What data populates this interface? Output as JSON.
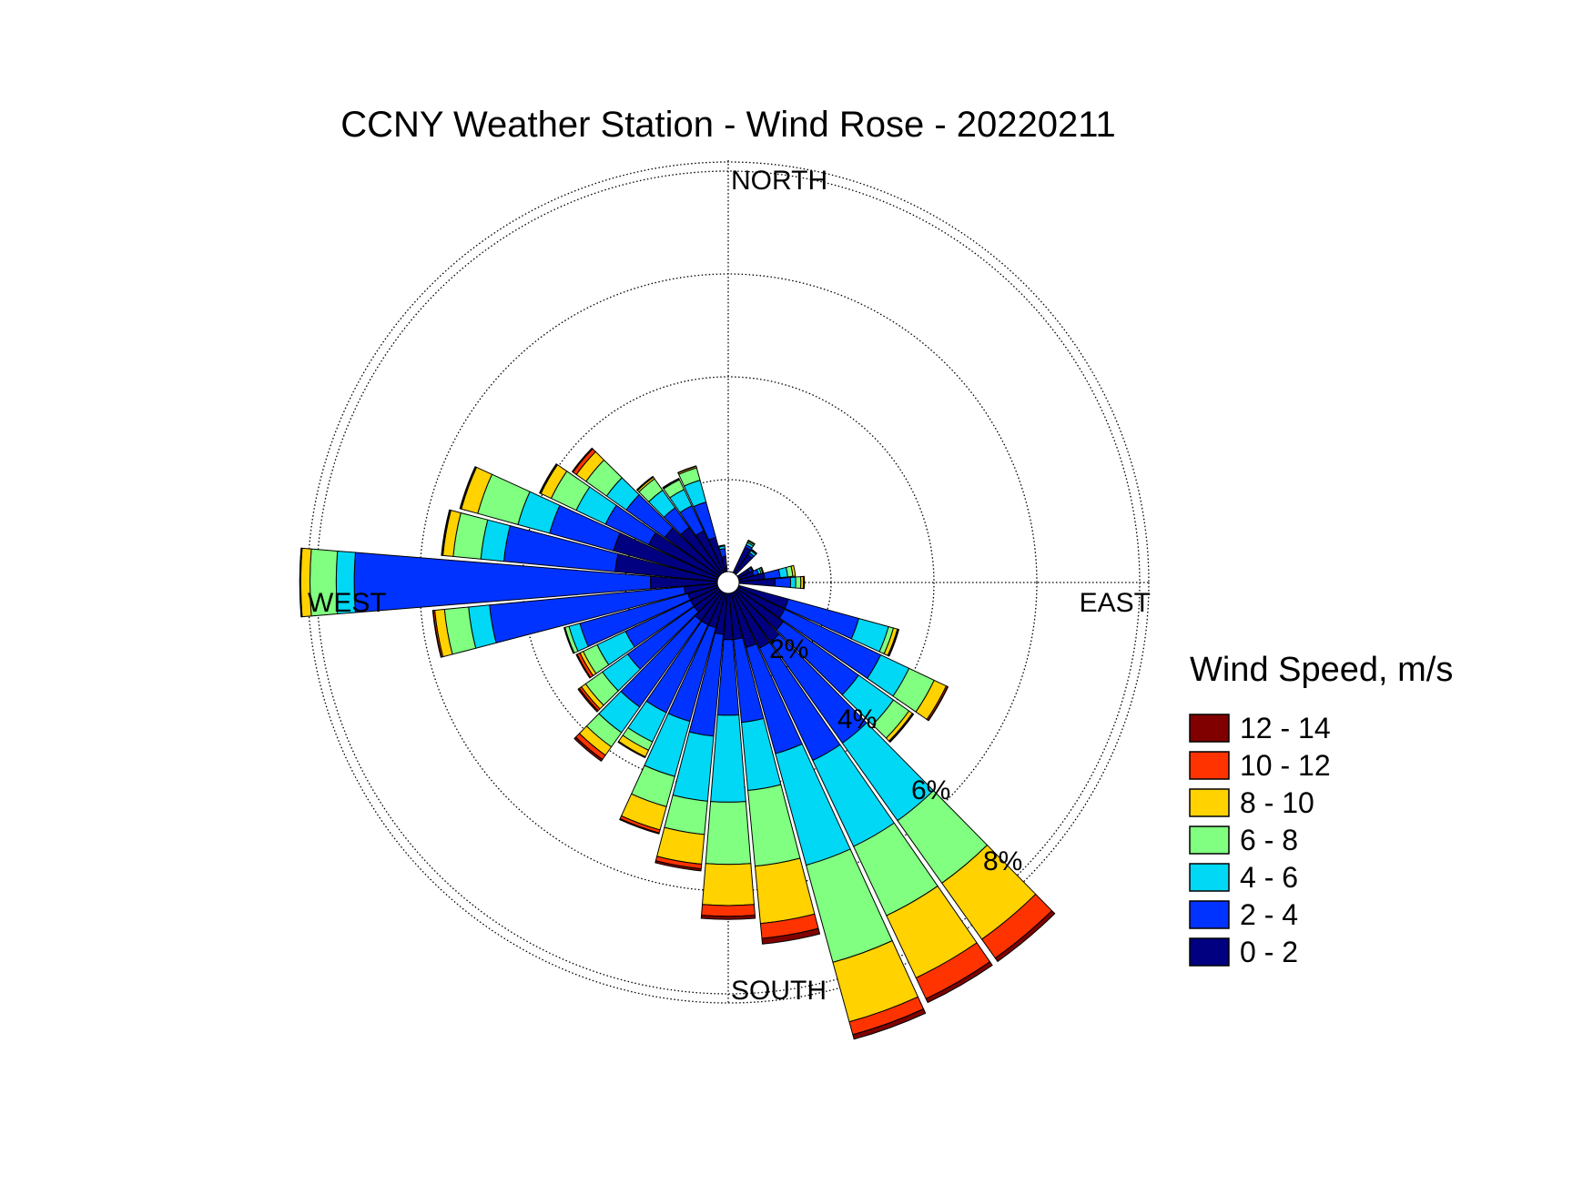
{
  "chart_data": {
    "type": "wind-rose",
    "title": "CCNY Weather Station - Wind Rose - 20220211",
    "direction_labels": {
      "north": "NORTH",
      "east": "EAST",
      "south": "SOUTH",
      "west": "WEST"
    },
    "ring_labels": [
      "2%",
      "4%",
      "6%",
      "8%"
    ],
    "rings_percent": [
      2,
      4,
      6,
      8
    ],
    "legend": {
      "title": "Wind Speed, m/s",
      "bins": [
        {
          "label": "12 - 14",
          "color": "#800000"
        },
        {
          "label": "10 - 12",
          "color": "#ff3300"
        },
        {
          "label": "8 - 10",
          "color": "#ffd200"
        },
        {
          "label": "6 - 8",
          "color": "#80ff80"
        },
        {
          "label": "4 - 6",
          "color": "#00d8f5"
        },
        {
          "label": "2 - 4",
          "color": "#0033ff"
        },
        {
          "label": "0 - 2",
          "color": "#000080"
        }
      ]
    },
    "bin_order_inner_to_outer": [
      "0 - 2",
      "2 - 4",
      "4 - 6",
      "6 - 8",
      "8 - 10",
      "10 - 12",
      "12 - 14"
    ],
    "sector_width_deg": 10,
    "sectors": [
      {
        "dir": 30,
        "cum": [
          0.55,
          0.6,
          0.65,
          0.68,
          0.7,
          0.7,
          0.7
        ]
      },
      {
        "dir": 40,
        "cum": [
          0.45,
          0.5,
          0.55,
          0.57,
          0.58,
          0.58,
          0.58
        ]
      },
      {
        "dir": 60,
        "cum": [
          0.25,
          0.3,
          0.32,
          0.33,
          0.33,
          0.33,
          0.33
        ]
      },
      {
        "dir": 70,
        "cum": [
          0.3,
          0.4,
          0.45,
          0.48,
          0.5,
          0.5,
          0.5
        ]
      },
      {
        "dir": 80,
        "cum": [
          0.5,
          0.8,
          0.95,
          1.05,
          1.1,
          1.1,
          1.1
        ]
      },
      {
        "dir": 90,
        "cum": [
          0.7,
          1.0,
          1.1,
          1.2,
          1.25,
          1.26,
          1.27
        ]
      },
      {
        "dir": 110,
        "cum": [
          1.0,
          2.42,
          3.02,
          3.12,
          3.2,
          3.22,
          3.23
        ]
      },
      {
        "dir": 120,
        "cum": [
          1.0,
          3.07,
          3.68,
          4.22,
          4.48,
          4.51,
          4.52
        ]
      },
      {
        "dir": 130,
        "cum": [
          1.1,
          2.9,
          3.73,
          4.1,
          4.18,
          4.2,
          4.21
        ]
      },
      {
        "dir": 140,
        "cum": [
          1.2,
          3.62,
          5.47,
          6.96,
          8.3,
          8.75,
          8.83
        ]
      },
      {
        "dir": 150,
        "cum": [
          1.2,
          3.62,
          5.47,
          6.96,
          8.3,
          8.75,
          8.83
        ]
      },
      {
        "dir": 160,
        "cum": [
          1.1,
          3.24,
          5.49,
          7.45,
          8.65,
          8.91,
          9.0
        ]
      },
      {
        "dir": 170,
        "cum": [
          0.9,
          2.52,
          3.85,
          5.33,
          6.45,
          6.74,
          6.85
        ]
      },
      {
        "dir": 180,
        "cum": [
          0.9,
          2.37,
          4.06,
          5.27,
          6.07,
          6.28,
          6.34
        ]
      },
      {
        "dir": 190,
        "cum": [
          0.8,
          2.79,
          4.06,
          4.71,
          5.29,
          5.38,
          5.42
        ]
      },
      {
        "dir": 200,
        "cum": [
          0.7,
          2.59,
          3.7,
          4.31,
          4.78,
          4.84,
          4.86
        ]
      },
      {
        "dir": 210,
        "cum": [
          0.7,
          2.59,
          3.22,
          3.4,
          3.54,
          3.56,
          3.56
        ]
      },
      {
        "dir": 220,
        "cum": [
          0.7,
          2.76,
          3.37,
          3.71,
          3.91,
          4.01,
          4.05
        ]
      },
      {
        "dir": 230,
        "cum": [
          0.6,
          2.19,
          2.79,
          3.19,
          3.29,
          3.34,
          3.37
        ]
      },
      {
        "dir": 240,
        "cum": [
          0.6,
          2.0,
          2.61,
          2.91,
          2.98,
          3.04,
          3.06
        ]
      },
      {
        "dir": 250,
        "cum": [
          0.6,
          2.78,
          3.0,
          3.08,
          3.09,
          3.1,
          3.1
        ]
      },
      {
        "dir": 260,
        "cum": [
          0.65,
          4.45,
          4.86,
          5.33,
          5.52,
          5.55,
          5.56
        ]
      },
      {
        "dir": 270,
        "cum": [
          1.3,
          7.06,
          7.41,
          7.92,
          8.1,
          8.11,
          8.12
        ]
      },
      {
        "dir": 280,
        "cum": [
          2.0,
          4.17,
          4.62,
          5.16,
          5.36,
          5.38,
          5.39
        ]
      },
      {
        "dir": 290,
        "cum": [
          2.1,
          3.39,
          4.03,
          4.84,
          5.17,
          5.19,
          5.2
        ]
      },
      {
        "dir": 300,
        "cum": [
          1.5,
          2.43,
          3.06,
          3.6,
          3.82,
          3.84,
          3.85
        ]
      },
      {
        "dir": 310,
        "cum": [
          1.3,
          2.22,
          2.69,
          3.18,
          3.41,
          3.49,
          3.51
        ]
      },
      {
        "dir": 320,
        "cum": [
          1.1,
          1.57,
          1.99,
          2.26,
          2.3,
          2.31,
          2.32
        ]
      },
      {
        "dir": 330,
        "cum": [
          0.9,
          1.44,
          1.79,
          2.0,
          2.02,
          2.03,
          2.03
        ]
      },
      {
        "dir": 340,
        "cum": [
          0.7,
          1.41,
          1.85,
          2.1,
          2.13,
          2.14,
          2.14
        ]
      },
      {
        "dir": 350,
        "cum": [
          0.3,
          0.45,
          0.5,
          0.52,
          0.52,
          0.52,
          0.52
        ]
      }
    ]
  }
}
